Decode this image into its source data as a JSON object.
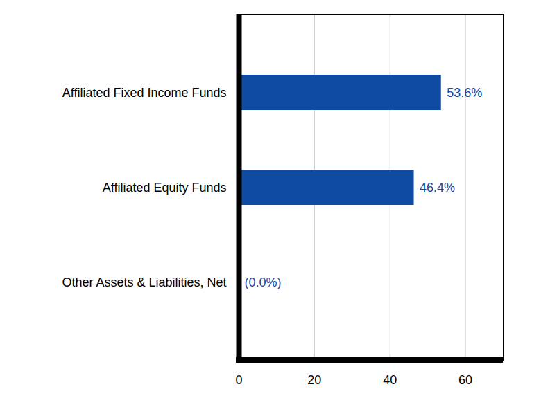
{
  "chart_data": {
    "type": "bar",
    "orientation": "horizontal",
    "categories": [
      "Affiliated Fixed Income Funds",
      "Affiliated Equity Funds",
      "Other Assets & Liabilities, Net"
    ],
    "values": [
      53.6,
      46.4,
      0.0
    ],
    "value_labels": [
      "53.6%",
      "46.4%",
      "(0.0%)"
    ],
    "data_labels": true,
    "color": "#0f4aa3",
    "xlim": [
      0,
      70
    ],
    "xticks": [
      0,
      20,
      40,
      60
    ],
    "grid": true
  }
}
